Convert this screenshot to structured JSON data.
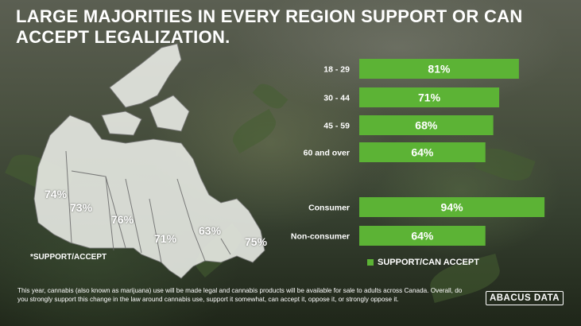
{
  "title": "LARGE MAJORITIES IN EVERY REGION SUPPORT OR CAN ACCEPT LEGALIZATION.",
  "map": {
    "regions": [
      {
        "label": "74%"
      },
      {
        "label": "73%"
      },
      {
        "label": "76%"
      },
      {
        "label": "71%"
      },
      {
        "label": "63%"
      },
      {
        "label": "75%"
      }
    ],
    "footnote": "*SUPPORT/ACCEPT"
  },
  "chart_data": {
    "type": "bar",
    "orientation": "horizontal",
    "categories": [
      "18 - 29",
      "30 - 44",
      "45 - 59",
      "60 and over",
      "Consumer",
      "Non-consumer"
    ],
    "series": [
      {
        "name": "SUPPORT/CAN ACCEPT",
        "values": [
          81,
          71,
          68,
          64,
          94,
          64
        ],
        "color": "#5cb335"
      }
    ],
    "data_labels": [
      "81%",
      "71%",
      "68%",
      "64%",
      "94%",
      "64%"
    ],
    "groups": [
      {
        "categories": [
          "18 - 29",
          "30 - 44",
          "45 - 59",
          "60 and over"
        ]
      },
      {
        "categories": [
          "Consumer",
          "Non-consumer"
        ]
      }
    ],
    "xlim": [
      0,
      100
    ],
    "legend_position": "bottom",
    "grid": false
  },
  "question": "This year, cannabis (also known as marijuana) use will be made legal and cannabis products will be available for sale to adults across Canada. Overall, do you strongly support this change in the law around cannabis use, support it somewhat, can accept it, oppose it, or strongly oppose it.",
  "logo": "ABACUS DATA"
}
